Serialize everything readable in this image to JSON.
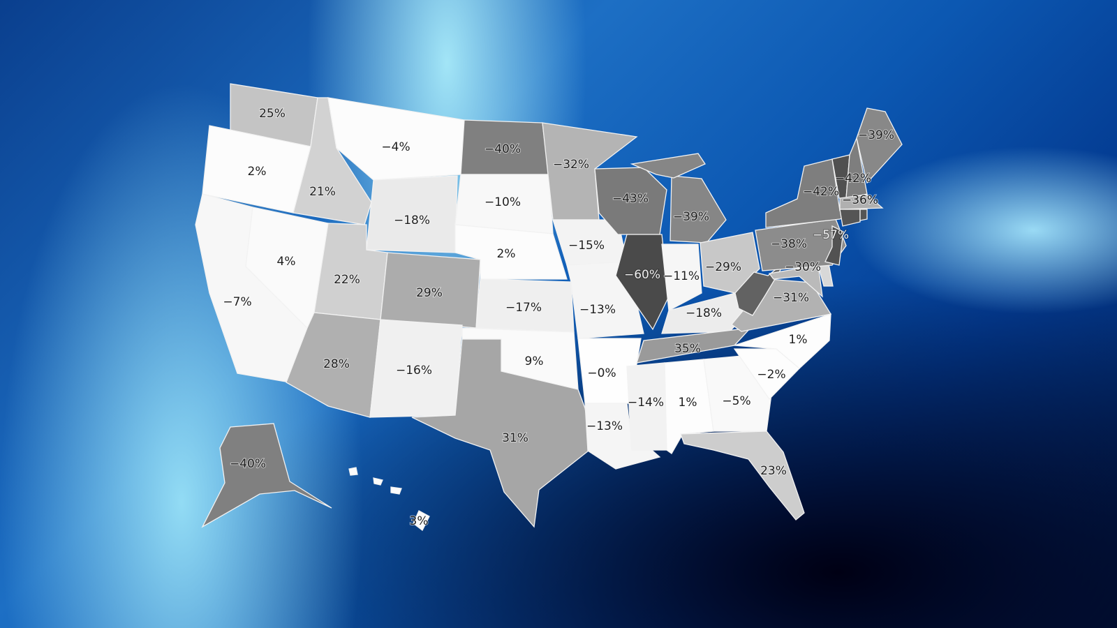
{
  "map": {
    "type": "choropleth",
    "region": "United States",
    "states": [
      {
        "id": "WA",
        "label": "25%",
        "fill": "#c4c4c4"
      },
      {
        "id": "OR",
        "label": "2%",
        "fill": "#fcfcfc"
      },
      {
        "id": "CA",
        "label": "−7%",
        "fill": "#f7f7f7"
      },
      {
        "id": "NV",
        "label": "4%",
        "fill": "#fafafa"
      },
      {
        "id": "ID",
        "label": "21%",
        "fill": "#d2d2d2"
      },
      {
        "id": "MT",
        "label": "−4%",
        "fill": "#fcfcfc"
      },
      {
        "id": "WY",
        "label": "−18%",
        "fill": "#eaeaea"
      },
      {
        "id": "UT",
        "label": "22%",
        "fill": "#d0d0d0"
      },
      {
        "id": "CO",
        "label": "29%",
        "fill": "#acacac"
      },
      {
        "id": "AZ",
        "label": "28%",
        "fill": "#b0b0b0"
      },
      {
        "id": "NM",
        "label": "−16%",
        "fill": "#f0f0f0"
      },
      {
        "id": "ND",
        "label": "−40%",
        "fill": "#808080"
      },
      {
        "id": "SD",
        "label": "−10%",
        "fill": "#f8f8f8"
      },
      {
        "id": "NE",
        "label": "2%",
        "fill": "#fcfcfc"
      },
      {
        "id": "KS",
        "label": "−17%",
        "fill": "#efefef"
      },
      {
        "id": "OK",
        "label": "9%",
        "fill": "#fafafa"
      },
      {
        "id": "TX",
        "label": "31%",
        "fill": "#a6a6a6"
      },
      {
        "id": "MN",
        "label": "−32%",
        "fill": "#b4b4b4"
      },
      {
        "id": "IA",
        "label": "−15%",
        "fill": "#f3f3f3"
      },
      {
        "id": "MO",
        "label": "−13%",
        "fill": "#f5f5f5"
      },
      {
        "id": "AR",
        "label": "−0%",
        "fill": "#fefefe"
      },
      {
        "id": "LA",
        "label": "−13%",
        "fill": "#f5f5f5"
      },
      {
        "id": "WI",
        "label": "−43%",
        "fill": "#7a7a7a"
      },
      {
        "id": "IL",
        "label": "−60%",
        "fill": "#4a4a4a"
      },
      {
        "id": "MI",
        "label": "−39%",
        "fill": "#868686"
      },
      {
        "id": "IN",
        "label": "−11%",
        "fill": "#f6f6f6"
      },
      {
        "id": "OH",
        "label": "−29%",
        "fill": "#c8c8c8"
      },
      {
        "id": "KY",
        "label": "−18%",
        "fill": "#ececec"
      },
      {
        "id": "TN",
        "label": "35%",
        "fill": "#9a9a9a"
      },
      {
        "id": "MS",
        "label": "−14%",
        "fill": "#f2f2f2"
      },
      {
        "id": "AL",
        "label": "1%",
        "fill": "#fdfdfd"
      },
      {
        "id": "GA",
        "label": "−5%",
        "fill": "#f9f9f9"
      },
      {
        "id": "FL",
        "label": "23%",
        "fill": "#cdcdcd"
      },
      {
        "id": "SC",
        "label": "−2%",
        "fill": "#fdfdfd"
      },
      {
        "id": "NC",
        "label": "1%",
        "fill": "#fdfdfd"
      },
      {
        "id": "VA",
        "label": "−31%",
        "fill": "#b2b2b2"
      },
      {
        "id": "WV",
        "label": "",
        "fill": "#626262"
      },
      {
        "id": "MD",
        "label": "−30%",
        "fill": "#bababa"
      },
      {
        "id": "DE",
        "label": "",
        "fill": "#d8d8d8"
      },
      {
        "id": "PA",
        "label": "−38%",
        "fill": "#8c8c8c"
      },
      {
        "id": "NY",
        "label": "−42%",
        "fill": "#7e7e7e"
      },
      {
        "id": "VT",
        "label": "",
        "fill": "#505050"
      },
      {
        "id": "NH",
        "label": "−42%",
        "fill": "#7e7e7e"
      },
      {
        "id": "ME",
        "label": "−39%",
        "fill": "#888888"
      },
      {
        "id": "MA",
        "label": "−36%",
        "fill": "#b0b0b0"
      },
      {
        "id": "CT",
        "label": "",
        "fill": "#555555"
      },
      {
        "id": "RI",
        "label": "",
        "fill": "#555555"
      },
      {
        "id": "NJ",
        "label": "−57%",
        "fill": "#525252"
      },
      {
        "id": "AK",
        "label": "−40%",
        "fill": "#808080"
      },
      {
        "id": "HI",
        "label": "3%",
        "fill": "#fbfbfb"
      }
    ]
  }
}
